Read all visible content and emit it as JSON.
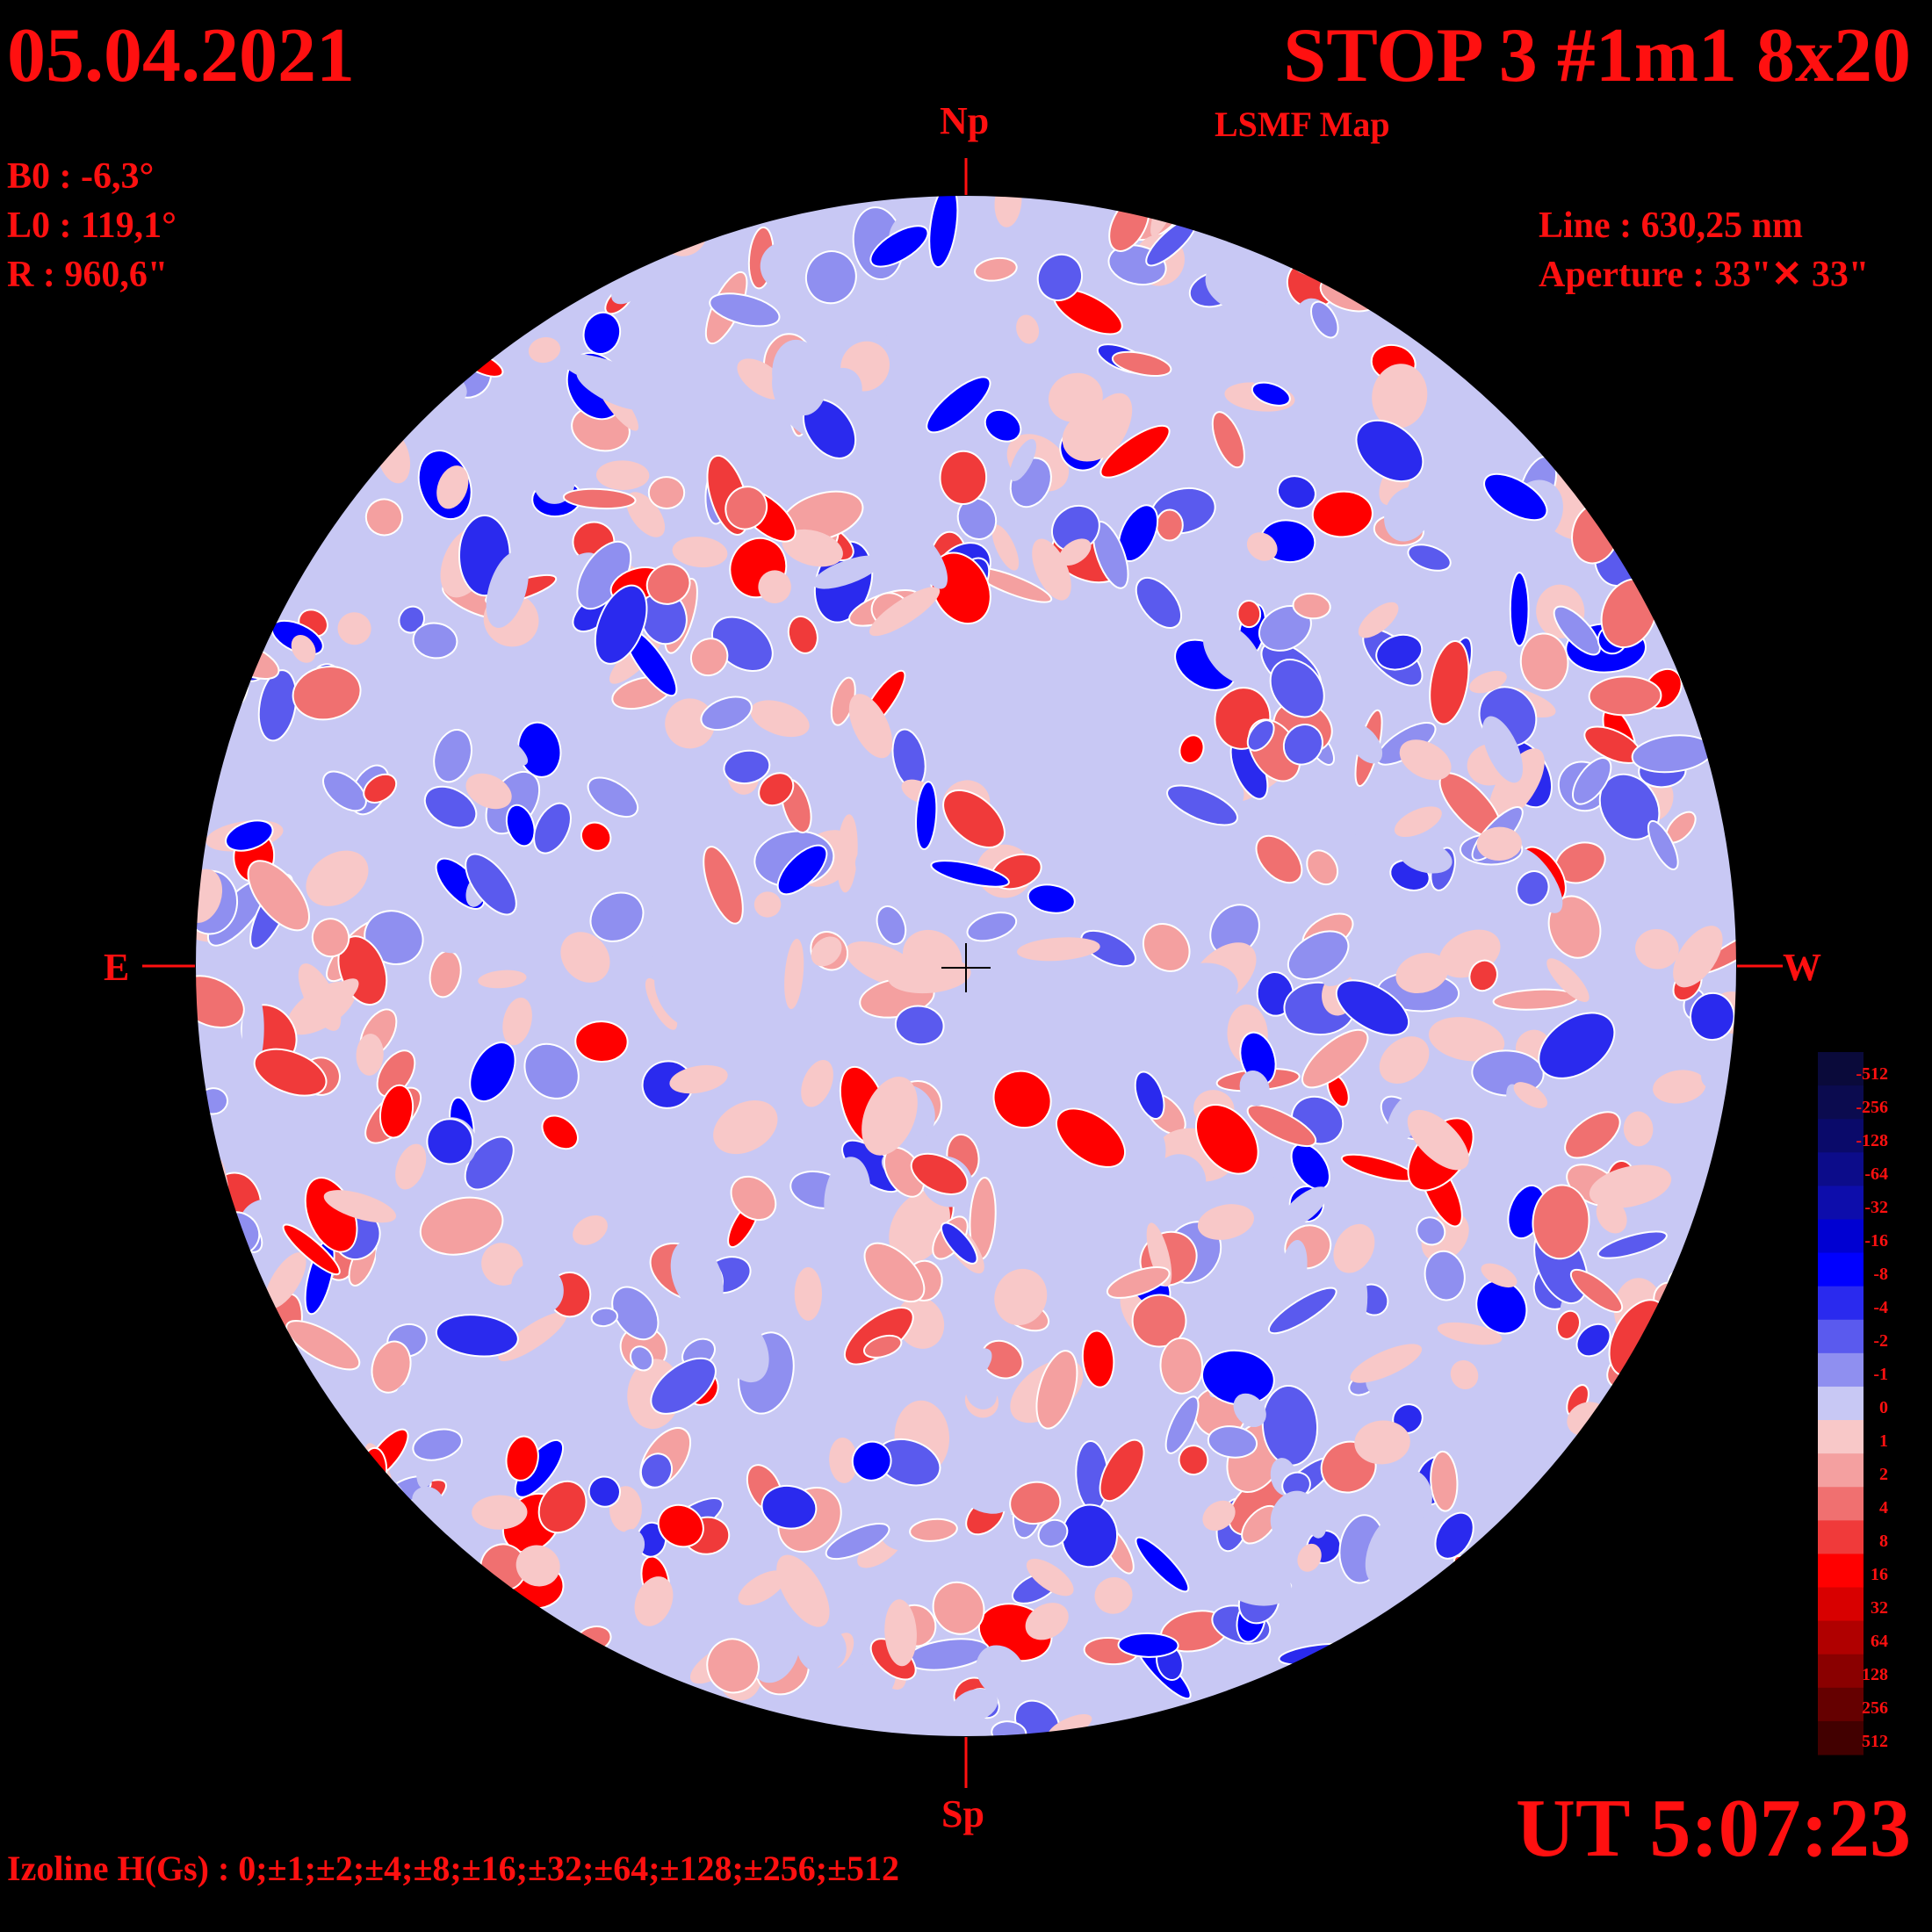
{
  "header": {
    "date": "05.04.2021",
    "title": "STOP 3 #1m1 8x20",
    "subtitle": "LSMF  Map"
  },
  "params_left": [
    "B0 : -6,3°",
    "L0 : 119,1°",
    "R  : 960,6\""
  ],
  "params_right": [
    "Line :  630,25 nm",
    "Aperture : 33\"✕ 33\""
  ],
  "compass": {
    "north": "Np",
    "south": "Sp",
    "east": "E",
    "west": "W"
  },
  "footer": {
    "izoline": "Izoline H(Gs) : 0;±1;±2;±4;±8;±16;±32;±64;±128;±256;±512",
    "ut": "UT 5:07:23"
  },
  "colorbar": {
    "labels": [
      "-512",
      "-256",
      "-128",
      "-64",
      "-32",
      "-16",
      "-8",
      "-4",
      "-2",
      "-1",
      "0",
      "1",
      "2",
      "4",
      "8",
      "16",
      "32",
      "64",
      "128",
      "256",
      "512"
    ],
    "colors": [
      "#0a0a3a",
      "#0b0b4f",
      "#0a0a6a",
      "#0c0c8a",
      "#0d0dab",
      "#0000d2",
      "#0000ff",
      "#2a2aee",
      "#5a5aee",
      "#8f8ff0",
      "#c8c8f4",
      "#f8c8c8",
      "#f4a0a0",
      "#f07070",
      "#f03a3a",
      "#ff0000",
      "#d80000",
      "#b00000",
      "#8a0000",
      "#650000",
      "#420000"
    ]
  },
  "colors": {
    "text": "#ff1010",
    "background": "#000000",
    "neg_strong": "#0000ff",
    "neg_weak": "#c8c8f4",
    "pos_weak": "#f8c8c8",
    "pos_strong": "#ff0000"
  }
}
